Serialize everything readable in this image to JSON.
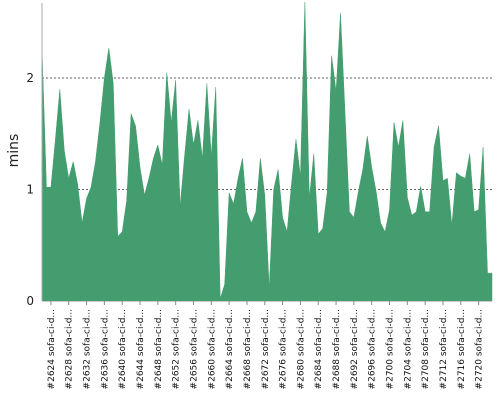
{
  "chart_data": {
    "type": "area",
    "title": "",
    "xlabel": "",
    "ylabel": "mins",
    "ylim": [
      0,
      2.7
    ],
    "yticks": [
      0,
      1,
      2
    ],
    "grid": "horizontal dashed at y ticks",
    "legend": "none",
    "color": "#449D6E",
    "tick_labels": [
      "#2624 sofa-ci-d...",
      "#2628 sofa-ci-d...",
      "#2632 sofa-ci-d...",
      "#2636 sofa-ci-d...",
      "#2640 sofa-ci-d...",
      "#2644 sofa-ci-d...",
      "#2648 sofa-ci-d...",
      "#2652 sofa-ci-d...",
      "#2656 sofa-ci-d...",
      "#2660 sofa-ci-d...",
      "#2664 sofa-ci-d...",
      "#2668 sofa-ci-d...",
      "#2672 sofa-ci-d...",
      "#2676 sofa-ci-d...",
      "#2680 sofa-ci-d...",
      "#2684 sofa-ci-d...",
      "#2688 sofa-ci-d...",
      "#2692 sofa-ci-d...",
      "#2696 sofa-ci-d...",
      "#2700 sofa-ci-d...",
      "#2704 sofa-ci-d...",
      "#2708 sofa-ci-d...",
      "#2712 sofa-ci-d...",
      "#2716 sofa-ci-d...",
      "#2720 sofa-ci-d..."
    ],
    "x": [
      2622,
      2623,
      2624,
      2625,
      2626,
      2627,
      2628,
      2629,
      2630,
      2631,
      2632,
      2633,
      2634,
      2635,
      2636,
      2637,
      2638,
      2639,
      2640,
      2641,
      2642,
      2643,
      2644,
      2645,
      2646,
      2647,
      2648,
      2649,
      2650,
      2651,
      2652,
      2653,
      2654,
      2655,
      2656,
      2657,
      2658,
      2659,
      2660,
      2661,
      2662,
      2663,
      2664,
      2665,
      2666,
      2667,
      2668,
      2669,
      2670,
      2671,
      2672,
      2673,
      2674,
      2675,
      2676,
      2677,
      2678,
      2679,
      2680,
      2681,
      2682,
      2683,
      2684,
      2685,
      2686,
      2687,
      2688,
      2689,
      2690,
      2691,
      2692,
      2693,
      2694,
      2695,
      2696,
      2697,
      2698,
      2699,
      2700,
      2701,
      2702,
      2703,
      2704,
      2705,
      2706,
      2707,
      2708,
      2709,
      2710,
      2711,
      2712,
      2713,
      2714,
      2715,
      2716,
      2717,
      2718,
      2719,
      2720,
      2721,
      2722,
      2723
    ],
    "values": [
      2.28,
      1.02,
      1.02,
      1.45,
      1.9,
      1.35,
      1.1,
      1.25,
      1.05,
      0.7,
      0.92,
      1.02,
      1.25,
      1.6,
      2.0,
      2.27,
      1.95,
      0.58,
      0.62,
      0.9,
      1.68,
      1.57,
      1.2,
      0.95,
      1.1,
      1.28,
      1.4,
      1.22,
      2.05,
      1.6,
      1.98,
      0.85,
      1.3,
      1.72,
      1.4,
      1.62,
      1.28,
      1.95,
      1.3,
      1.92,
      0.02,
      0.15,
      0.97,
      0.87,
      1.1,
      1.28,
      0.8,
      0.7,
      0.8,
      1.28,
      0.95,
      0.12,
      1.0,
      1.18,
      0.75,
      0.62,
      1.05,
      1.45,
      1.12,
      2.68,
      0.92,
      1.32,
      0.6,
      0.65,
      0.97,
      2.2,
      1.88,
      2.58,
      1.7,
      0.8,
      0.75,
      0.98,
      1.18,
      1.48,
      1.2,
      0.98,
      0.7,
      0.62,
      0.82,
      1.6,
      1.38,
      1.62,
      0.93,
      0.77,
      0.8,
      1.03,
      0.8,
      0.8,
      1.38,
      1.57,
      1.08,
      1.1,
      0.68,
      1.15,
      1.12,
      1.1,
      1.32,
      0.8,
      0.82,
      1.38,
      0.25,
      0.25
    ]
  }
}
